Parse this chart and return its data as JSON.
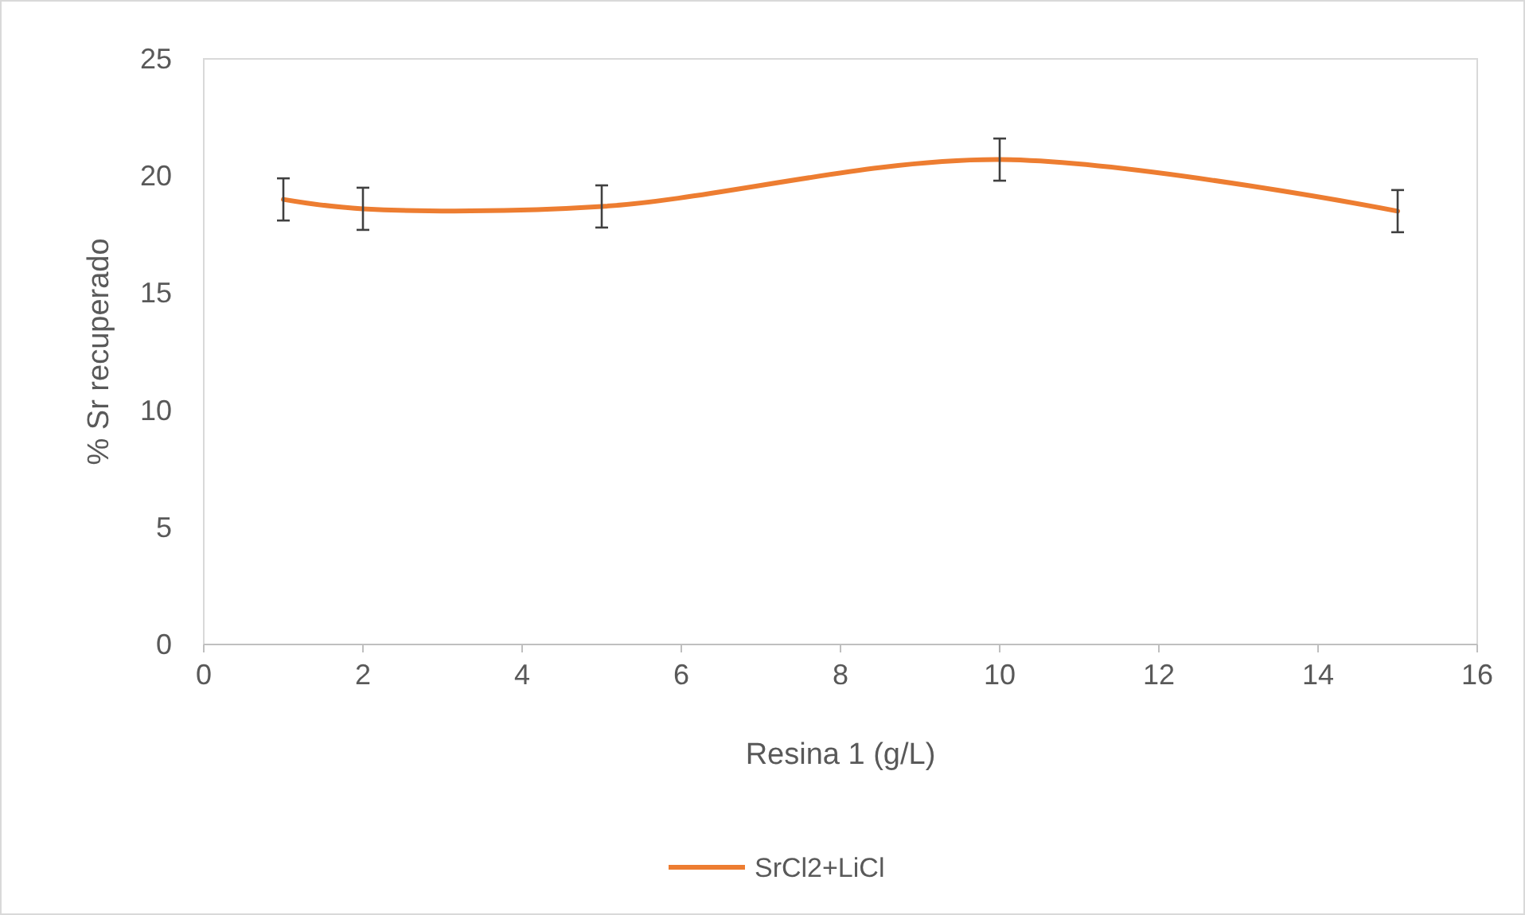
{
  "chart_data": {
    "type": "line",
    "xlabel": "Resina 1 (g/L)",
    "ylabel": "% Sr recuperado",
    "x": [
      1,
      2,
      5,
      10,
      15
    ],
    "series": [
      {
        "name": "SrCl2+LiCl",
        "color": "#ed7d31",
        "values": [
          19.0,
          18.6,
          18.7,
          20.7,
          18.5
        ],
        "errors": [
          0.9,
          0.9,
          0.9,
          0.9,
          0.9
        ]
      }
    ],
    "xlim": [
      0,
      16
    ],
    "xticks": [
      0,
      2,
      4,
      6,
      8,
      10,
      12,
      14,
      16
    ],
    "ylim": [
      0,
      25
    ],
    "yticks": [
      0,
      5,
      10,
      15,
      20,
      25
    ],
    "grid": false,
    "legend": "bottom",
    "marker": "none",
    "line_style": "solid"
  }
}
